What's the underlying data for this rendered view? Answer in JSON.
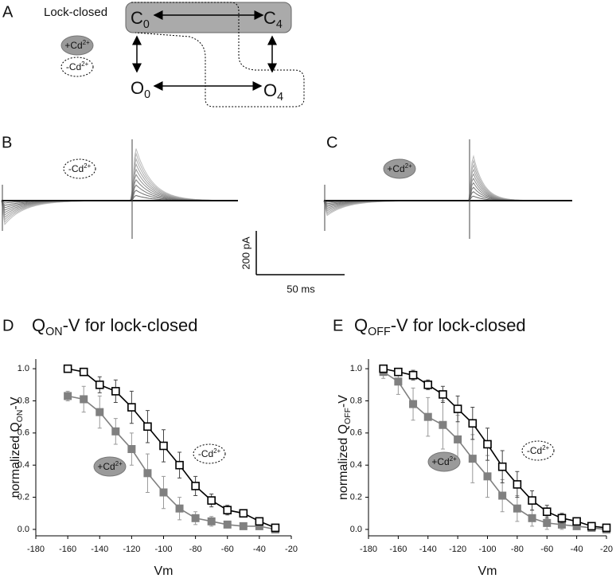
{
  "panel_labels": [
    "A",
    "B",
    "C",
    "D",
    "E"
  ],
  "scheme": {
    "group_label": "Lock-closed",
    "nodes": [
      {
        "label": "C",
        "sub": "0"
      },
      {
        "label": "C",
        "sub": "4"
      },
      {
        "label": "O",
        "sub": "0"
      },
      {
        "label": "O",
        "sub": "4"
      }
    ],
    "legend": [
      {
        "label": "+Cd",
        "sup": "2+"
      },
      {
        "label": "-Cd",
        "sup": "2+"
      }
    ]
  },
  "traces": [
    {
      "label": "-Cd",
      "sup": "2+"
    },
    {
      "label": "+Cd",
      "sup": "2+"
    }
  ],
  "scale_bar": {
    "y": "200 pA",
    "x": "50 ms"
  },
  "chart_data": [
    {
      "type": "scatter",
      "title": {
        "text": "Q",
        "sub": "ON",
        "rest": "-V for lock-closed"
      },
      "x_label": "Vm",
      "y_label": {
        "text": "normalized Q",
        "sub": "ON",
        "rest": " -V"
      },
      "x": [
        -160,
        -150,
        -140,
        -130,
        -120,
        -110,
        -100,
        -90,
        -80,
        -70,
        -60,
        -50,
        -40,
        -30
      ],
      "series": [
        {
          "name": "+Cd",
          "name_sup": "2+",
          "color": "#808080",
          "marker": "filled",
          "values": [
            0.83,
            0.81,
            0.73,
            0.61,
            0.5,
            0.35,
            0.23,
            0.13,
            0.07,
            0.05,
            0.03,
            0.02,
            0.02,
            0.0
          ],
          "errors": [
            0.03,
            0.08,
            0.1,
            0.08,
            0.1,
            0.12,
            0.1,
            0.07,
            0.04,
            0.03,
            0.02,
            0.02,
            0.01,
            0.01
          ]
        },
        {
          "name": "-Cd",
          "name_sup": "2+",
          "color": "#000000",
          "marker": "open",
          "values": [
            1.0,
            0.98,
            0.9,
            0.86,
            0.76,
            0.64,
            0.52,
            0.4,
            0.27,
            0.18,
            0.12,
            0.1,
            0.05,
            0.01
          ],
          "errors": [
            0.01,
            0.02,
            0.05,
            0.07,
            0.1,
            0.1,
            0.1,
            0.08,
            0.06,
            0.04,
            0.03,
            0.02,
            0.02,
            0.01
          ]
        }
      ],
      "xlim": [
        -180,
        -20
      ],
      "xticks": [
        -180,
        -160,
        -140,
        -120,
        -100,
        -80,
        -60,
        -40,
        -20
      ],
      "ylim": [
        -0.04,
        1.06
      ],
      "yticks": [
        {
          "value": 0,
          "label": "0.0"
        },
        0.2,
        0.4,
        0.6,
        0.8,
        {
          "value": 1,
          "label": "1.0"
        }
      ]
    },
    {
      "type": "scatter",
      "title": {
        "text": "Q",
        "sub": "OFF",
        "rest": "-V for lock-closed"
      },
      "x_label": "Vm",
      "y_label": {
        "text": "normalized Q",
        "sub": "OFF",
        "rest": " -V"
      },
      "x": [
        -170,
        -160,
        -150,
        -140,
        -130,
        -120,
        -110,
        -100,
        -90,
        -80,
        -70,
        -60,
        -50,
        -40,
        -30,
        -20
      ],
      "series": [
        {
          "name": "+Cd",
          "name_sup": "2+",
          "color": "#808080",
          "marker": "filled",
          "values": [
            0.98,
            0.92,
            0.78,
            0.7,
            0.65,
            0.56,
            0.44,
            0.33,
            0.21,
            0.13,
            0.07,
            0.04,
            0.03,
            0.02,
            0.01,
            0.0
          ],
          "errors": [
            0.04,
            0.08,
            0.1,
            0.12,
            0.15,
            0.15,
            0.15,
            0.13,
            0.1,
            0.08,
            0.05,
            0.04,
            0.03,
            0.02,
            0.01,
            0.01
          ]
        },
        {
          "name": "-Cd",
          "name_sup": "2+",
          "color": "#000000",
          "marker": "open",
          "values": [
            1.0,
            0.98,
            0.96,
            0.9,
            0.84,
            0.75,
            0.66,
            0.53,
            0.39,
            0.28,
            0.18,
            0.11,
            0.07,
            0.05,
            0.02,
            0.01
          ],
          "errors": [
            0.01,
            0.02,
            0.03,
            0.03,
            0.05,
            0.08,
            0.1,
            0.1,
            0.1,
            0.08,
            0.06,
            0.04,
            0.03,
            0.02,
            0.02,
            0.01
          ]
        }
      ],
      "xlim": [
        -180,
        -20
      ],
      "xticks": [
        -180,
        -160,
        -140,
        -120,
        -100,
        -80,
        -60,
        -40,
        -20
      ],
      "ylim": [
        -0.04,
        1.06
      ],
      "yticks": [
        {
          "value": 0,
          "label": "0.0"
        },
        0.2,
        0.4,
        0.6,
        0.8,
        {
          "value": 1,
          "label": "1.0"
        }
      ]
    }
  ]
}
